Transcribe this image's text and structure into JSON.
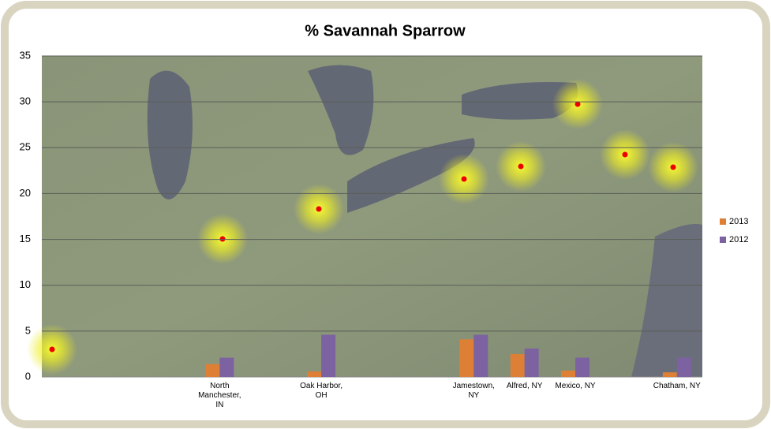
{
  "chart_data": {
    "type": "bar",
    "title": "% Savannah Sparrow",
    "categories": [
      null,
      null,
      null,
      "North Manchester, IN",
      null,
      "Oak Harbor, OH",
      null,
      null,
      "Jamestown, NY",
      "Alfred, NY",
      "Mexico, NY",
      null,
      "Chatham, NY"
    ],
    "series": [
      {
        "name": "2013",
        "color": "#dd8036",
        "values": [
          null,
          null,
          null,
          1.4,
          null,
          0.6,
          null,
          null,
          4.1,
          2.5,
          0.7,
          null,
          0.5
        ]
      },
      {
        "name": "2012",
        "color": "#7c62a0",
        "values": [
          null,
          null,
          null,
          2.1,
          null,
          4.6,
          null,
          null,
          4.6,
          3.1,
          2.1,
          null,
          2.1
        ]
      }
    ],
    "ylim": [
      0,
      35
    ],
    "yticks": [
      0,
      5,
      10,
      15,
      20,
      25,
      30,
      35
    ],
    "grid": true,
    "legend": "right"
  }
}
